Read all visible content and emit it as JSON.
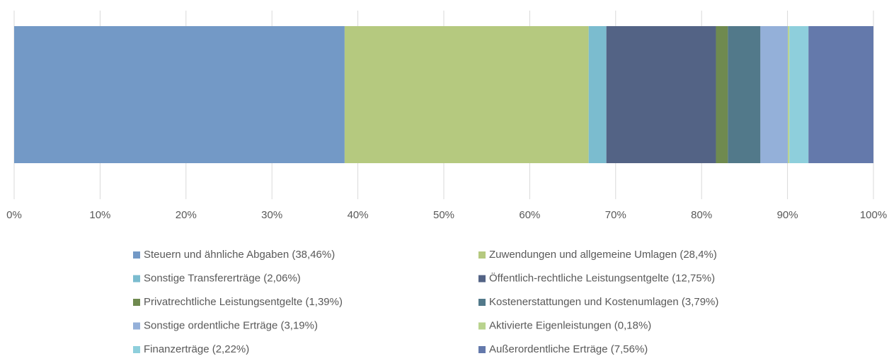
{
  "chart_data": {
    "type": "stacked_bar_horizontal",
    "series": [
      {
        "name": "Steuern und ähnliche Abgaben (38,46%)",
        "color": "#7399c6",
        "values": [
          38.46
        ]
      },
      {
        "name": "Zuwendungen und allgemeine Umlagen (28,4%)",
        "color": "#b5c97f",
        "values": [
          28.4
        ]
      },
      {
        "name": "Sonstige Transfererträge (2,06%)",
        "color": "#7bbccf",
        "values": [
          2.06
        ]
      },
      {
        "name": "Öffentlich-rechtliche Leistungsentgelte (12,75%)",
        "color": "#536385",
        "values": [
          12.75
        ]
      },
      {
        "name": "Privatrechtliche Leistungsentgelte (1,39%)",
        "color": "#6f8a4f",
        "values": [
          1.39
        ]
      },
      {
        "name": "Kostenerstattungen und Kostenumlagen (3,79%)",
        "color": "#52798a",
        "values": [
          3.79
        ]
      },
      {
        "name": "Sonstige ordentliche Erträge (3,19%)",
        "color": "#94b0d9",
        "values": [
          3.19
        ]
      },
      {
        "name": "Aktivierte Eigenleistungen (0,18%)",
        "color": "#b9d38e",
        "values": [
          0.18
        ]
      },
      {
        "name": "Finanzerträge (2,22%)",
        "color": "#8ecfdc",
        "values": [
          2.22
        ]
      },
      {
        "name": "Außerordentliche Erträge (7,56%)",
        "color": "#6479ab",
        "values": [
          7.56
        ]
      }
    ],
    "xlim": [
      0,
      100
    ],
    "xticks": [
      {
        "value": 0,
        "label": "0%"
      },
      {
        "value": 10,
        "label": "10%"
      },
      {
        "value": 20,
        "label": "20%"
      },
      {
        "value": 30,
        "label": "30%"
      },
      {
        "value": 40,
        "label": "40%"
      },
      {
        "value": 50,
        "label": "50%"
      },
      {
        "value": 60,
        "label": "60%"
      },
      {
        "value": 70,
        "label": "70%"
      },
      {
        "value": 80,
        "label": "80%"
      },
      {
        "value": 90,
        "label": "90%"
      },
      {
        "value": 100,
        "label": "100%"
      }
    ],
    "grid": true,
    "legend": "bottom"
  }
}
